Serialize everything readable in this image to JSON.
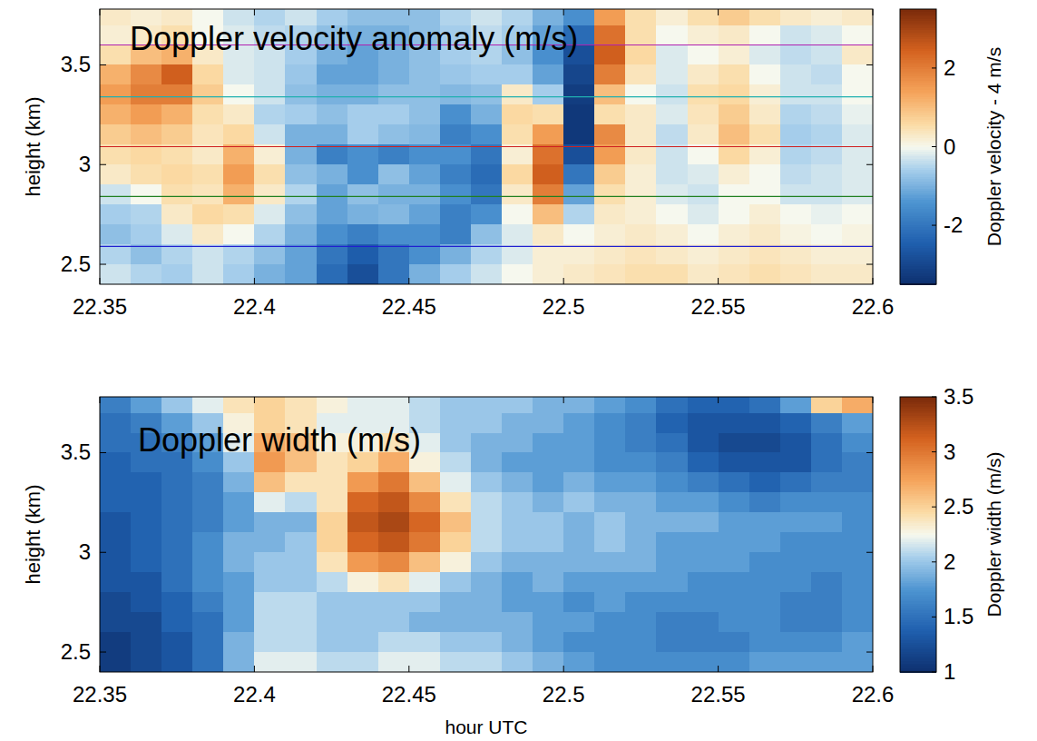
{
  "chart_data": [
    {
      "type": "heatmap",
      "title": "Doppler velocity anomaly (m/s)",
      "y_label": "height (km)",
      "xlim": [
        22.35,
        22.6
      ],
      "xticks": [
        22.35,
        22.4,
        22.45,
        22.5,
        22.55,
        22.6
      ],
      "ylim": [
        2.4,
        3.78
      ],
      "yticks": [
        2.5,
        3,
        3.5
      ],
      "x": [
        22.355,
        22.365,
        22.375,
        22.385,
        22.395,
        22.405,
        22.415,
        22.425,
        22.435,
        22.445,
        22.455,
        22.465,
        22.475,
        22.485,
        22.495,
        22.505,
        22.515,
        22.525,
        22.535,
        22.545,
        22.555,
        22.565,
        22.575,
        22.585,
        22.595
      ],
      "y": [
        3.75,
        3.65,
        3.55,
        3.45,
        3.35,
        3.25,
        3.15,
        3.05,
        2.95,
        2.85,
        2.75,
        2.65,
        2.55,
        2.45
      ],
      "values": [
        [
          0.3,
          0.2,
          0.3,
          0,
          -0.3,
          -0.5,
          -0.3,
          -0.6,
          -0.8,
          -0.8,
          -0.8,
          -0.5,
          -0.3,
          -0.5,
          -1.0,
          -1.5,
          1.5,
          0.5,
          0.2,
          0.5,
          0.8,
          0.5,
          0.3,
          0.2,
          0.3
        ],
        [
          0.2,
          0.3,
          0.5,
          0,
          -0.2,
          -0.4,
          -0.5,
          -0.8,
          -1.0,
          -1.0,
          -0.8,
          -0.6,
          -0.4,
          -0.6,
          -1.2,
          -2.2,
          2.2,
          0.5,
          0,
          0.2,
          0.3,
          0,
          -0.3,
          -0.2,
          0
        ],
        [
          0.5,
          1.0,
          1.2,
          0.3,
          -0.2,
          -0.3,
          -0.6,
          -1.0,
          -1.2,
          -1.0,
          -0.8,
          -0.6,
          -0.5,
          -0.8,
          -1.5,
          -2.8,
          2.5,
          0.6,
          -0.2,
          0,
          0.2,
          -0.2,
          -0.4,
          -0.3,
          0.3
        ],
        [
          1.2,
          1.8,
          2.5,
          0.6,
          -0.2,
          -0.3,
          -0.7,
          -1.2,
          -1.2,
          -1.0,
          -0.8,
          -0.7,
          -0.6,
          -0.6,
          -1.2,
          -3.0,
          2.0,
          0.4,
          -0.2,
          0.3,
          0.5,
          0,
          -0.3,
          -0.4,
          0
        ],
        [
          1.5,
          2.0,
          2.0,
          0.8,
          0,
          -0.3,
          -0.8,
          -1.0,
          -1.0,
          -0.8,
          -0.8,
          -0.9,
          -0.8,
          0.3,
          -0.6,
          -3.2,
          1.0,
          0,
          -0.3,
          0.5,
          0.6,
          0.2,
          -0.3,
          -0.3,
          0
        ],
        [
          1.2,
          1.5,
          1.2,
          0.5,
          0.3,
          -0.5,
          -0.6,
          -0.8,
          -0.6,
          -0.6,
          -0.8,
          -1.5,
          -1.0,
          0.6,
          0.5,
          -3.3,
          0.5,
          0.3,
          -0.2,
          0.4,
          0.8,
          0.3,
          -0.5,
          -0.4,
          -0.1
        ],
        [
          0.8,
          1.0,
          0.8,
          0.4,
          0.6,
          -0.3,
          -1.0,
          -1.0,
          -0.6,
          -0.8,
          -0.9,
          -1.8,
          -1.5,
          0.5,
          1.5,
          -3.3,
          1.8,
          0.3,
          -0.4,
          0.3,
          1.0,
          0.5,
          -0.6,
          -0.5,
          -0.2
        ],
        [
          0.5,
          0.6,
          0.5,
          0.3,
          1.2,
          0.2,
          -1.0,
          -1.8,
          -1.5,
          -1.8,
          -1.5,
          -1.5,
          -2.0,
          0.2,
          2.2,
          -2.8,
          1.5,
          0.3,
          -0.3,
          0,
          0.6,
          0.2,
          -0.5,
          -0.4,
          -0.2
        ],
        [
          0.3,
          0.5,
          0.6,
          0.5,
          1.5,
          0.5,
          -0.8,
          -1.0,
          -1.5,
          -0.8,
          -1.2,
          -1.8,
          -2.2,
          0.6,
          2.5,
          -2.0,
          0.8,
          0.2,
          -0.3,
          -0.2,
          0.2,
          0,
          -0.4,
          -0.3,
          -0.2
        ],
        [
          -0.3,
          0,
          0.5,
          0.4,
          1.2,
          0.3,
          -0.5,
          -1.2,
          -0.8,
          -1.0,
          -1.0,
          -1.5,
          -2.0,
          0.3,
          2.0,
          -1.2,
          0.5,
          0.2,
          -0.2,
          -0.3,
          0,
          0,
          -0.3,
          -0.3,
          -0.2
        ],
        [
          -0.6,
          -0.5,
          0.3,
          0.6,
          0.5,
          -0.2,
          -0.8,
          -1.2,
          -1.0,
          -0.9,
          -1.2,
          -1.8,
          -1.5,
          0,
          1.0,
          -0.5,
          0.3,
          0.2,
          0,
          -0.2,
          0,
          0.2,
          0,
          -0.1,
          0
        ],
        [
          -0.8,
          -0.6,
          -0.2,
          0.3,
          0,
          -0.5,
          -1.0,
          -1.5,
          -1.8,
          -1.5,
          -1.5,
          -1.8,
          -0.8,
          -0.2,
          0.3,
          0,
          0.2,
          0.3,
          0.2,
          0,
          0.2,
          0.3,
          0.1,
          0,
          0.1
        ],
        [
          -0.5,
          -0.8,
          -0.5,
          -0.3,
          -0.5,
          -0.8,
          -1.2,
          -2.0,
          -2.5,
          -2.0,
          -1.5,
          -1.0,
          -0.5,
          -0.2,
          0.2,
          0.2,
          0.3,
          0.4,
          0.3,
          0.2,
          0.3,
          0.4,
          0.3,
          0.2,
          0.2
        ],
        [
          -0.3,
          -0.5,
          -0.6,
          -0.3,
          -0.6,
          -1.0,
          -1.2,
          -2.2,
          -2.8,
          -2.0,
          -1.0,
          -0.6,
          -0.3,
          0,
          0.2,
          0.3,
          0.4,
          0.5,
          0.5,
          0.3,
          0.4,
          0.5,
          0.4,
          0.3,
          0.3
        ]
      ],
      "colorbar": {
        "label": "Doppler velocity - 4 m/s",
        "range": [
          -3.5,
          3.5
        ],
        "ticks": [
          -2,
          0,
          2
        ]
      },
      "reference_lines": [
        {
          "y": 3.6,
          "color": "#b020b0"
        },
        {
          "y": 3.34,
          "color": "#20b0b0"
        },
        {
          "y": 3.09,
          "color": "#d02020"
        },
        {
          "y": 2.84,
          "color": "#208020"
        },
        {
          "y": 2.59,
          "color": "#2020d0"
        }
      ]
    },
    {
      "type": "heatmap",
      "title": "Doppler width (m/s)",
      "y_label": "height (km)",
      "x_label": "hour UTC",
      "xlim": [
        22.35,
        22.6
      ],
      "xticks": [
        22.35,
        22.4,
        22.45,
        22.5,
        22.55,
        22.6
      ],
      "ylim": [
        2.4,
        3.78
      ],
      "yticks": [
        2.5,
        3,
        3.5
      ],
      "x": [
        22.355,
        22.365,
        22.375,
        22.385,
        22.395,
        22.405,
        22.415,
        22.425,
        22.435,
        22.445,
        22.455,
        22.465,
        22.475,
        22.485,
        22.495,
        22.505,
        22.515,
        22.525,
        22.535,
        22.545,
        22.555,
        22.565,
        22.575,
        22.585,
        22.595
      ],
      "y": [
        3.75,
        3.65,
        3.55,
        3.45,
        3.35,
        3.25,
        3.15,
        3.05,
        2.95,
        2.85,
        2.75,
        2.65,
        2.55,
        2.45
      ],
      "values": [
        [
          1.6,
          1.8,
          2.0,
          2.2,
          2.4,
          2.5,
          2.4,
          2.3,
          2.2,
          2.2,
          2.1,
          2.0,
          2.0,
          2.0,
          1.9,
          1.9,
          1.8,
          1.7,
          1.5,
          1.4,
          1.4,
          1.5,
          1.8,
          2.5,
          2.7
        ],
        [
          1.5,
          1.6,
          1.8,
          2.0,
          2.3,
          2.5,
          2.4,
          2.2,
          2.2,
          2.2,
          2.1,
          2.0,
          2.0,
          1.9,
          1.9,
          1.8,
          1.7,
          1.6,
          1.4,
          1.3,
          1.3,
          1.3,
          1.4,
          1.6,
          1.8
        ],
        [
          1.5,
          1.5,
          1.6,
          1.8,
          2.2,
          2.7,
          2.6,
          2.3,
          2.3,
          2.4,
          2.2,
          2.0,
          1.9,
          1.9,
          1.8,
          1.8,
          1.7,
          1.6,
          1.5,
          1.3,
          1.2,
          1.2,
          1.3,
          1.5,
          1.7
        ],
        [
          1.4,
          1.5,
          1.5,
          1.7,
          2.0,
          2.8,
          2.6,
          2.4,
          2.5,
          2.7,
          2.3,
          2.1,
          1.9,
          1.8,
          1.8,
          1.8,
          1.7,
          1.7,
          1.6,
          1.4,
          1.3,
          1.3,
          1.3,
          1.5,
          1.6
        ],
        [
          1.4,
          1.4,
          1.5,
          1.6,
          1.9,
          2.6,
          2.4,
          2.4,
          2.8,
          3.0,
          2.6,
          2.2,
          2.0,
          1.9,
          1.8,
          1.9,
          1.8,
          1.8,
          1.7,
          1.6,
          1.5,
          1.4,
          1.5,
          1.6,
          1.6
        ],
        [
          1.4,
          1.4,
          1.5,
          1.6,
          1.8,
          2.2,
          2.1,
          2.4,
          3.1,
          3.2,
          2.9,
          2.4,
          2.1,
          2.0,
          1.9,
          2.0,
          1.9,
          1.9,
          1.8,
          1.8,
          1.7,
          1.6,
          1.7,
          1.7,
          1.7
        ],
        [
          1.3,
          1.4,
          1.5,
          1.6,
          1.8,
          1.9,
          1.9,
          2.5,
          3.2,
          3.3,
          3.1,
          2.6,
          2.1,
          2.0,
          2.0,
          1.9,
          2.0,
          1.9,
          1.9,
          1.9,
          1.8,
          1.8,
          1.8,
          1.8,
          1.7
        ],
        [
          1.3,
          1.4,
          1.5,
          1.7,
          1.9,
          1.9,
          2.0,
          2.5,
          3.1,
          3.2,
          3.0,
          2.5,
          2.1,
          2.0,
          2.0,
          1.9,
          2.0,
          1.9,
          1.8,
          1.8,
          1.8,
          1.8,
          1.7,
          1.7,
          1.7
        ],
        [
          1.3,
          1.4,
          1.5,
          1.7,
          1.9,
          2.0,
          2.0,
          2.4,
          2.8,
          2.9,
          2.6,
          2.3,
          2.0,
          1.9,
          1.9,
          1.9,
          1.9,
          1.9,
          1.8,
          1.8,
          1.8,
          1.7,
          1.7,
          1.7,
          1.7
        ],
        [
          1.3,
          1.3,
          1.5,
          1.7,
          1.8,
          2.0,
          2.0,
          2.1,
          2.3,
          2.4,
          2.2,
          2.0,
          1.9,
          1.8,
          1.9,
          1.8,
          1.8,
          1.8,
          1.8,
          1.7,
          1.7,
          1.7,
          1.7,
          1.6,
          1.7
        ],
        [
          1.2,
          1.3,
          1.4,
          1.6,
          1.8,
          2.1,
          2.1,
          2.0,
          2.0,
          2.0,
          2.0,
          1.9,
          1.9,
          1.8,
          1.8,
          1.7,
          1.8,
          1.7,
          1.7,
          1.7,
          1.7,
          1.7,
          1.6,
          1.6,
          1.7
        ],
        [
          1.2,
          1.2,
          1.4,
          1.5,
          1.8,
          2.1,
          2.1,
          2.0,
          2.0,
          2.0,
          1.9,
          1.9,
          1.9,
          1.9,
          1.8,
          1.8,
          1.7,
          1.7,
          1.6,
          1.6,
          1.7,
          1.7,
          1.6,
          1.6,
          1.7
        ],
        [
          1.1,
          1.2,
          1.3,
          1.5,
          1.9,
          2.1,
          2.1,
          2.0,
          2.0,
          2.1,
          2.1,
          2.0,
          2.0,
          1.9,
          1.8,
          1.7,
          1.7,
          1.7,
          1.6,
          1.6,
          1.6,
          1.7,
          1.7,
          1.7,
          1.8
        ],
        [
          1.1,
          1.2,
          1.3,
          1.5,
          1.9,
          2.2,
          2.2,
          2.1,
          2.1,
          2.2,
          2.2,
          2.1,
          2.1,
          2.0,
          1.9,
          1.8,
          1.7,
          1.7,
          1.7,
          1.7,
          1.7,
          1.8,
          1.8,
          1.8,
          1.8
        ]
      ],
      "colorbar": {
        "label": "Doppler width (m/s)",
        "range": [
          1,
          3.5
        ],
        "ticks": [
          1,
          1.5,
          2,
          2.5,
          3,
          3.5
        ]
      }
    }
  ]
}
